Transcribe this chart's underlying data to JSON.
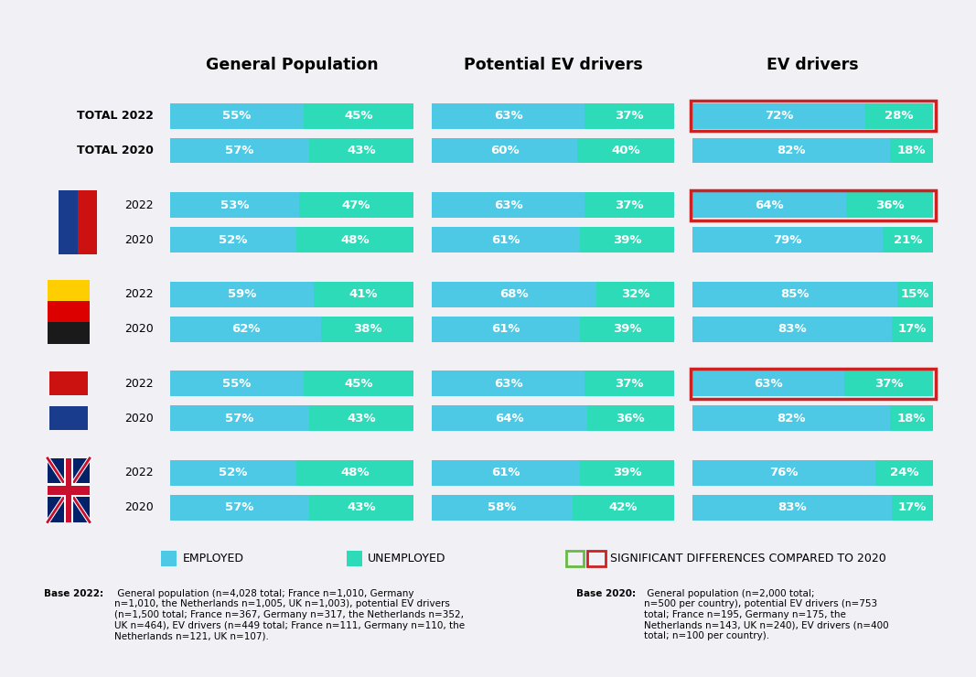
{
  "title_bg_color": "#333333",
  "chart_bg_color": "#f0f0f5",
  "footnote_bg_color": "#e6e6ef",
  "color_employed": "#4dc9e6",
  "color_unemployed": "#2ddbb8",
  "color_highlight_border": "#cc2222",
  "color_highlight_green": "#66bb44",
  "column_headers": [
    "General Population",
    "Potential EV drivers",
    "EV drivers"
  ],
  "data": {
    "General Population": {
      "employed": [
        55,
        57,
        53,
        52,
        59,
        62,
        55,
        57,
        52,
        57
      ],
      "unemployed": [
        45,
        43,
        47,
        48,
        41,
        38,
        45,
        43,
        48,
        43
      ]
    },
    "Potential EV drivers": {
      "employed": [
        63,
        60,
        63,
        61,
        68,
        61,
        63,
        64,
        61,
        58
      ],
      "unemployed": [
        37,
        40,
        37,
        39,
        32,
        39,
        37,
        36,
        39,
        42
      ]
    },
    "EV drivers": {
      "employed": [
        72,
        82,
        64,
        79,
        85,
        83,
        63,
        82,
        76,
        83
      ],
      "unemployed": [
        28,
        18,
        36,
        21,
        15,
        17,
        37,
        18,
        24,
        17
      ]
    }
  },
  "highlight_rows": {
    "General Population": [],
    "Potential EV drivers": [],
    "EV drivers": [
      0,
      2,
      6
    ]
  },
  "row_labels": [
    "TOTAL 2022",
    "TOTAL 2020",
    "2022",
    "2020",
    "2022",
    "2020",
    "2022",
    "2020",
    "2022",
    "2020"
  ],
  "row_bold": [
    true,
    true,
    false,
    false,
    false,
    false,
    false,
    false,
    false,
    false
  ],
  "legend_employed": "EMPLOYED",
  "legend_unemployed": "UNEMPLOYED",
  "legend_highlight": "SIGNIFICANT DIFFERENCES COMPARED TO 2020",
  "footnote_2022_bold": "Base 2022:",
  "footnote_2022_normal": " General population (n=4,028 total; France n=1,010, Germany\nn=1,010, the Netherlands n=1,005, UK n=1,003), potential EV drivers\n(n=1,500 total; France n=367, Germany n=317, the Netherlands n=352,\nUK n=464), EV drivers (n=449 total; France n=111, Germany n=110, the\nNetherlands n=121, UK n=107).",
  "footnote_2020_bold": "Base 2020:",
  "footnote_2020_normal": " General population (n=2,000 total;\nn=500 per country), potential EV drivers (n=753\ntotal; France n=195, Germany n=175, the\nNetherlands n=143, UK n=240), EV drivers (n=400\ntotal; n=100 per country)."
}
